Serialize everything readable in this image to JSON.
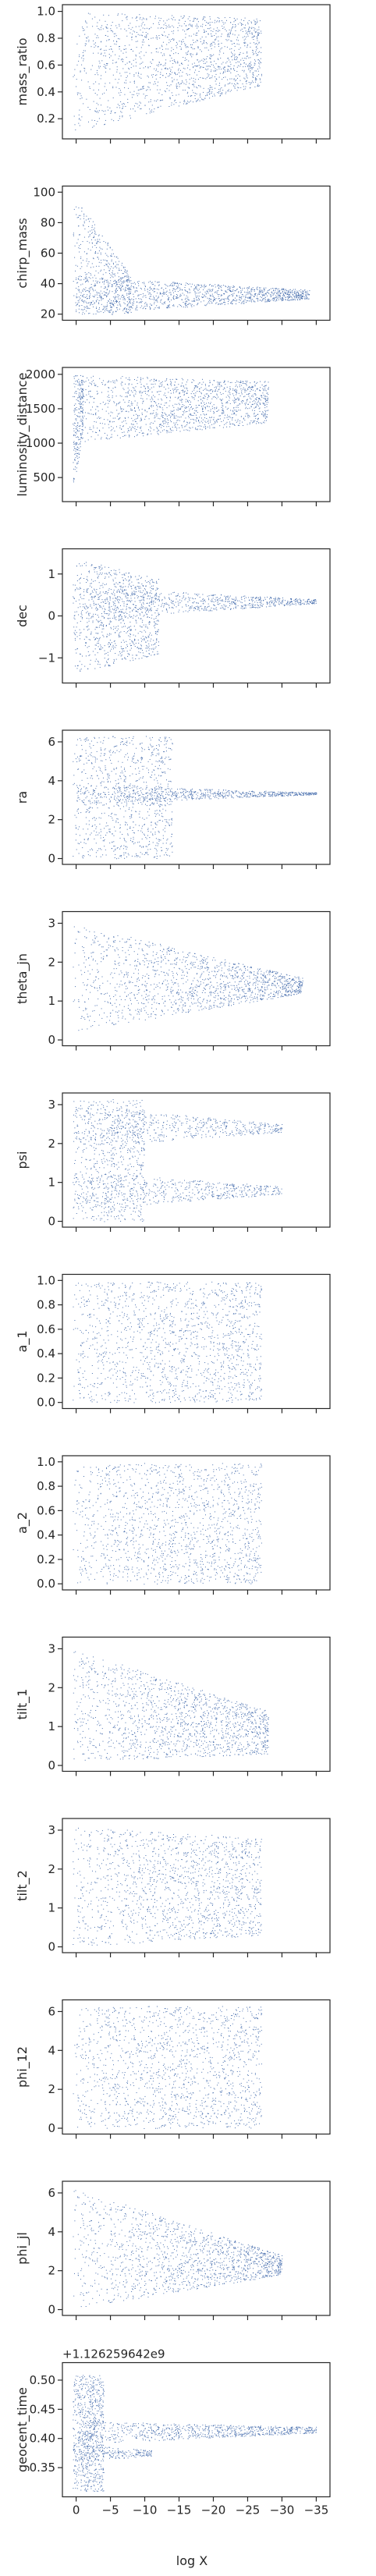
{
  "figure": {
    "xlabel": "log X",
    "xlim": [
      2,
      -37
    ],
    "x_ticks": [
      0,
      -5,
      -10,
      -15,
      -20,
      -25,
      -30,
      -35
    ],
    "x_tick_labels": [
      "0",
      "−5",
      "−10",
      "−15",
      "−20",
      "−25",
      "−30",
      "−35"
    ],
    "point_color": "#4c72b0"
  },
  "chart_data": [
    {
      "type": "scatter",
      "ylabel": "mass_ratio",
      "ylim": [
        0.05,
        1.05
      ],
      "y_ticks": [
        0.2,
        0.4,
        0.6,
        0.8,
        1.0
      ],
      "y_tick_labels": [
        "0.2",
        "0.4",
        "0.6",
        "0.8",
        "1.0"
      ],
      "clusters": [
        {
          "x_max": -27,
          "y": [
            0.1,
            1.0
          ],
          "y_end": [
            0.45,
            0.95
          ],
          "n": 1500
        }
      ]
    },
    {
      "type": "scatter",
      "ylabel": "chirp_mass",
      "ylim": [
        16,
        104
      ],
      "y_ticks": [
        20,
        40,
        60,
        80,
        100
      ],
      "y_tick_labels": [
        "20",
        "40",
        "60",
        "80",
        "100"
      ],
      "clusters": [
        {
          "x_max": -8,
          "y": [
            20,
            100
          ],
          "y_end": [
            20,
            45
          ],
          "n": 500
        },
        {
          "x_max": -34,
          "y": [
            20,
            45
          ],
          "y_end": [
            30,
            36
          ],
          "n": 1200
        }
      ]
    },
    {
      "type": "scatter",
      "ylabel": "luminosity_distance",
      "ylim": [
        150,
        2100
      ],
      "y_ticks": [
        500,
        1000,
        1500,
        2000
      ],
      "y_tick_labels": [
        "500",
        "1000",
        "1500",
        "2000"
      ],
      "clusters": [
        {
          "x_max": -1,
          "y": [
            200,
            2000
          ],
          "y_end": [
            1200,
            2000
          ],
          "n": 200
        },
        {
          "x_max": -28,
          "y": [
            1000,
            2000
          ],
          "y_end": [
            1300,
            1900
          ],
          "n": 1400
        }
      ]
    },
    {
      "type": "scatter",
      "ylabel": "dec",
      "ylim": [
        -1.6,
        1.6
      ],
      "y_ticks": [
        -1,
        0,
        1
      ],
      "y_tick_labels": [
        "−1",
        "0",
        "1"
      ],
      "clusters": [
        {
          "x_max": -12,
          "y": [
            -1.4,
            1.4
          ],
          "y_end": [
            -0.9,
            0.9
          ],
          "n": 900
        },
        {
          "x_max": -35,
          "y": [
            -0.1,
            0.7
          ],
          "y_end": [
            0.3,
            0.4
          ],
          "n": 700
        }
      ]
    },
    {
      "type": "scatter",
      "ylabel": "ra",
      "ylim": [
        -0.3,
        6.6
      ],
      "y_ticks": [
        0,
        2,
        4,
        6
      ],
      "y_tick_labels": [
        "0",
        "2",
        "4",
        "6"
      ],
      "clusters": [
        {
          "x_max": -14,
          "y": [
            0,
            6.3
          ],
          "y_end": [
            0,
            6.3
          ],
          "n": 900
        },
        {
          "x_max": -35,
          "y": [
            2.8,
            3.8
          ],
          "y_end": [
            3.3,
            3.4
          ],
          "n": 700
        }
      ]
    },
    {
      "type": "scatter",
      "ylabel": "theta_jn",
      "ylim": [
        -0.15,
        3.3
      ],
      "y_ticks": [
        0,
        1,
        2,
        3
      ],
      "y_tick_labels": [
        "0",
        "1",
        "2",
        "3"
      ],
      "clusters": [
        {
          "x_max": -33,
          "y": [
            0.2,
            3.0
          ],
          "y_end": [
            1.2,
            1.6
          ],
          "n": 1500
        }
      ]
    },
    {
      "type": "scatter",
      "ylabel": "psi",
      "ylim": [
        -0.15,
        3.3
      ],
      "y_ticks": [
        0,
        1,
        2,
        3
      ],
      "y_tick_labels": [
        "0",
        "1",
        "2",
        "3"
      ],
      "clusters": [
        {
          "x_max": -10,
          "y": [
            0,
            3.14
          ],
          "y_end": [
            0,
            3.14
          ],
          "n": 700
        },
        {
          "x_max": -30,
          "y": [
            1.9,
            3.0
          ],
          "y_end": [
            2.3,
            2.5
          ],
          "n": 500
        },
        {
          "x_max": -30,
          "y": [
            0.3,
            1.3
          ],
          "y_end": [
            0.7,
            0.9
          ],
          "n": 500
        }
      ]
    },
    {
      "type": "scatter",
      "ylabel": "a_1",
      "ylim": [
        -0.05,
        1.05
      ],
      "y_ticks": [
        0.0,
        0.2,
        0.4,
        0.6,
        0.8,
        1.0
      ],
      "y_tick_labels": [
        "0.0",
        "0.2",
        "0.4",
        "0.6",
        "0.8",
        "1.0"
      ],
      "clusters": [
        {
          "x_max": -27,
          "y": [
            0.0,
            0.99
          ],
          "y_end": [
            0.0,
            0.99
          ],
          "n": 1500
        }
      ]
    },
    {
      "type": "scatter",
      "ylabel": "a_2",
      "ylim": [
        -0.05,
        1.05
      ],
      "y_ticks": [
        0.0,
        0.2,
        0.4,
        0.6,
        0.8,
        1.0
      ],
      "y_tick_labels": [
        "0.0",
        "0.2",
        "0.4",
        "0.6",
        "0.8",
        "1.0"
      ],
      "clusters": [
        {
          "x_max": -27,
          "y": [
            0.0,
            0.99
          ],
          "y_end": [
            0.0,
            0.99
          ],
          "n": 1500
        }
      ]
    },
    {
      "type": "scatter",
      "ylabel": "tilt_1",
      "ylim": [
        -0.15,
        3.3
      ],
      "y_ticks": [
        0,
        1,
        2,
        3
      ],
      "y_tick_labels": [
        "0",
        "1",
        "2",
        "3"
      ],
      "clusters": [
        {
          "x_max": -28,
          "y": [
            0.1,
            3.0
          ],
          "y_end": [
            0.3,
            1.4
          ],
          "n": 1500
        }
      ]
    },
    {
      "type": "scatter",
      "ylabel": "tilt_2",
      "ylim": [
        -0.15,
        3.3
      ],
      "y_ticks": [
        0,
        1,
        2,
        3
      ],
      "y_tick_labels": [
        "0",
        "1",
        "2",
        "3"
      ],
      "clusters": [
        {
          "x_max": -27,
          "y": [
            0.0,
            3.1
          ],
          "y_end": [
            0.3,
            2.8
          ],
          "n": 1500
        }
      ]
    },
    {
      "type": "scatter",
      "ylabel": "phi_12",
      "ylim": [
        -0.3,
        6.6
      ],
      "y_ticks": [
        0,
        2,
        4,
        6
      ],
      "y_tick_labels": [
        "0",
        "2",
        "4",
        "6"
      ],
      "clusters": [
        {
          "x_max": -27,
          "y": [
            0,
            6.28
          ],
          "y_end": [
            0,
            6.28
          ],
          "n": 1500
        }
      ]
    },
    {
      "type": "scatter",
      "ylabel": "phi_jl",
      "ylim": [
        -0.3,
        6.6
      ],
      "y_ticks": [
        0,
        2,
        4,
        6
      ],
      "y_tick_labels": [
        "0",
        "2",
        "4",
        "6"
      ],
      "clusters": [
        {
          "x_max": -30,
          "y": [
            0,
            6.28
          ],
          "y_end": [
            1.8,
            2.8
          ],
          "n": 1500
        }
      ]
    },
    {
      "type": "scatter",
      "ylabel": "geocent_time",
      "ylim": [
        0.3,
        0.53
      ],
      "y_offset_label": "+1.126259642e9",
      "y_ticks": [
        0.35,
        0.4,
        0.45,
        0.5
      ],
      "y_tick_labels": [
        "0.35",
        "0.40",
        "0.45",
        "0.50"
      ],
      "clusters": [
        {
          "x_max": -4,
          "y": [
            0.31,
            0.51
          ],
          "y_end": [
            0.31,
            0.51
          ],
          "n": 700
        },
        {
          "x_max": -35,
          "y": [
            0.39,
            0.43
          ],
          "y_end": [
            0.41,
            0.42
          ],
          "n": 800
        },
        {
          "x_max": -11,
          "y": [
            0.36,
            0.39
          ],
          "y_end": [
            0.37,
            0.38
          ],
          "n": 200
        }
      ]
    }
  ]
}
